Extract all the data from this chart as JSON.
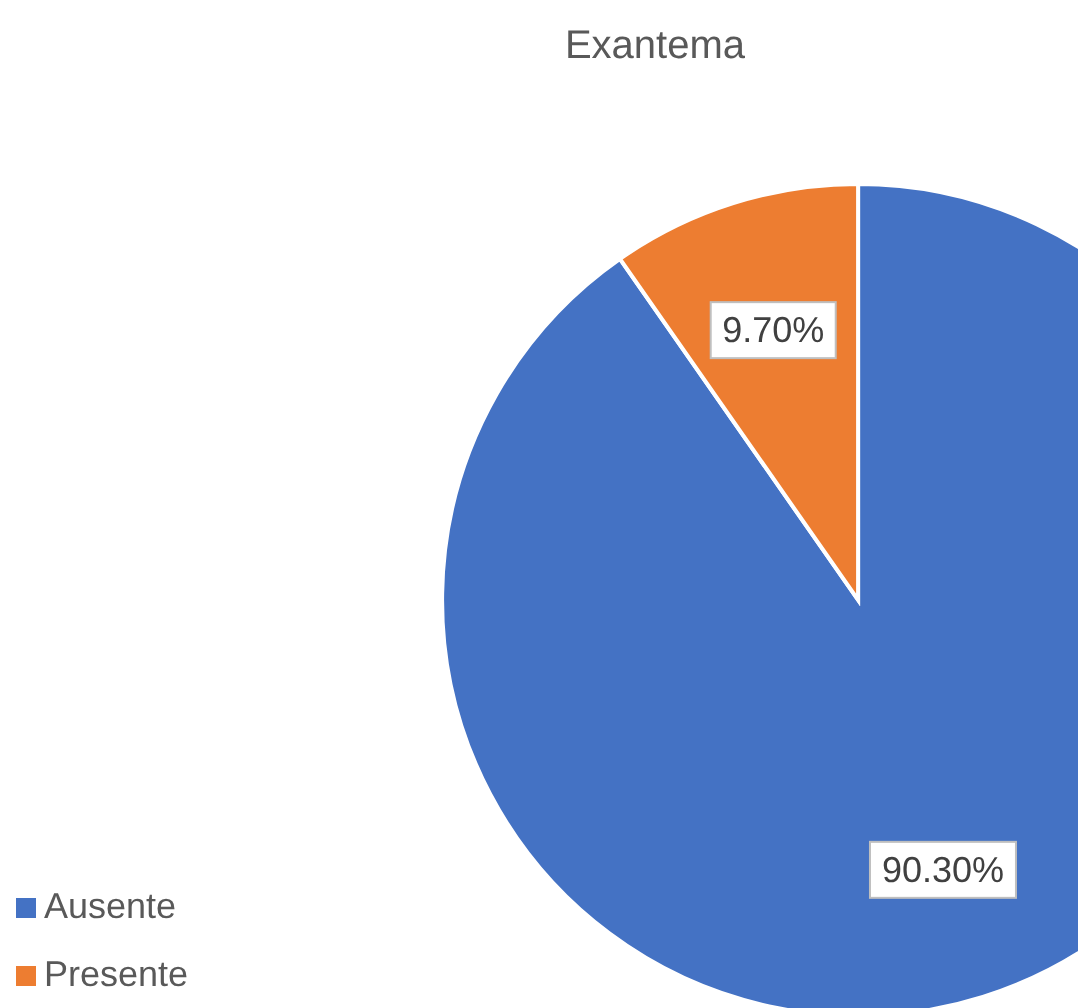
{
  "chart_data": {
    "type": "pie",
    "title": "Exantema",
    "categories": [
      "Ausente",
      "Presente"
    ],
    "values": [
      90.3,
      9.7
    ],
    "colors": [
      "#4472c4",
      "#ed7d31"
    ],
    "value_labels": [
      "90.30%",
      "9.70%"
    ],
    "legend": "bottom left"
  }
}
